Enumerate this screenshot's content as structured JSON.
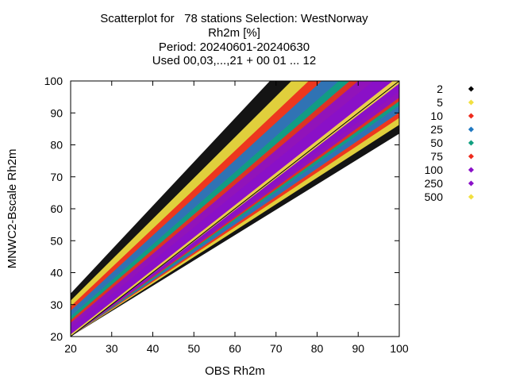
{
  "chart_data": {
    "type": "heatmap",
    "title_lines": [
      "Scatterplot for   78 stations Selection: WestNorway",
      "Rh2m [%]",
      "Period: 20240601-20240630",
      "Used 00,03,...,21 + 00 01 ... 12"
    ],
    "xlabel": "OBS Rh2m",
    "ylabel": "MNWC2-Bscale Rh2m",
    "xlim": [
      20,
      100
    ],
    "ylim": [
      20,
      100
    ],
    "xticks": [
      20,
      30,
      40,
      50,
      60,
      70,
      80,
      90,
      100
    ],
    "yticks": [
      20,
      30,
      40,
      50,
      60,
      70,
      80,
      90,
      100
    ],
    "grid": false,
    "diagonal_line": true,
    "legend_position": "right",
    "legend": [
      {
        "label": "2",
        "color": "#000000"
      },
      {
        "label": "5",
        "color": "#f2e040"
      },
      {
        "label": "10",
        "color": "#ee2a1c"
      },
      {
        "label": "25",
        "color": "#1f78c1"
      },
      {
        "label": "50",
        "color": "#10a080"
      },
      {
        "label": "75",
        "color": "#ee2a1c"
      },
      {
        "label": "100",
        "color": "#8a10c8"
      },
      {
        "label": "250",
        "color": "#8a10c8"
      },
      {
        "label": "500",
        "color": "#f2e040"
      }
    ],
    "density_bands": [
      {
        "level": "2",
        "color": "#000000",
        "half_width": 30
      },
      {
        "level": "5",
        "color": "#f2e040",
        "half_width": 25
      },
      {
        "level": "10",
        "color": "#ee2a1c",
        "half_width": 21
      },
      {
        "level": "25",
        "color": "#1f78c1",
        "half_width": 18
      },
      {
        "level": "50",
        "color": "#10a080",
        "half_width": 14
      },
      {
        "level": "75",
        "color": "#ee2a1c",
        "half_width": 11.5
      },
      {
        "level": "100",
        "color": "#8a10c8",
        "half_width": 9.5
      },
      {
        "level": "250",
        "color": "#8a10c8",
        "half_width": 6
      },
      {
        "level": "500",
        "color": "#f2e040",
        "half_width": 1.5
      }
    ]
  }
}
